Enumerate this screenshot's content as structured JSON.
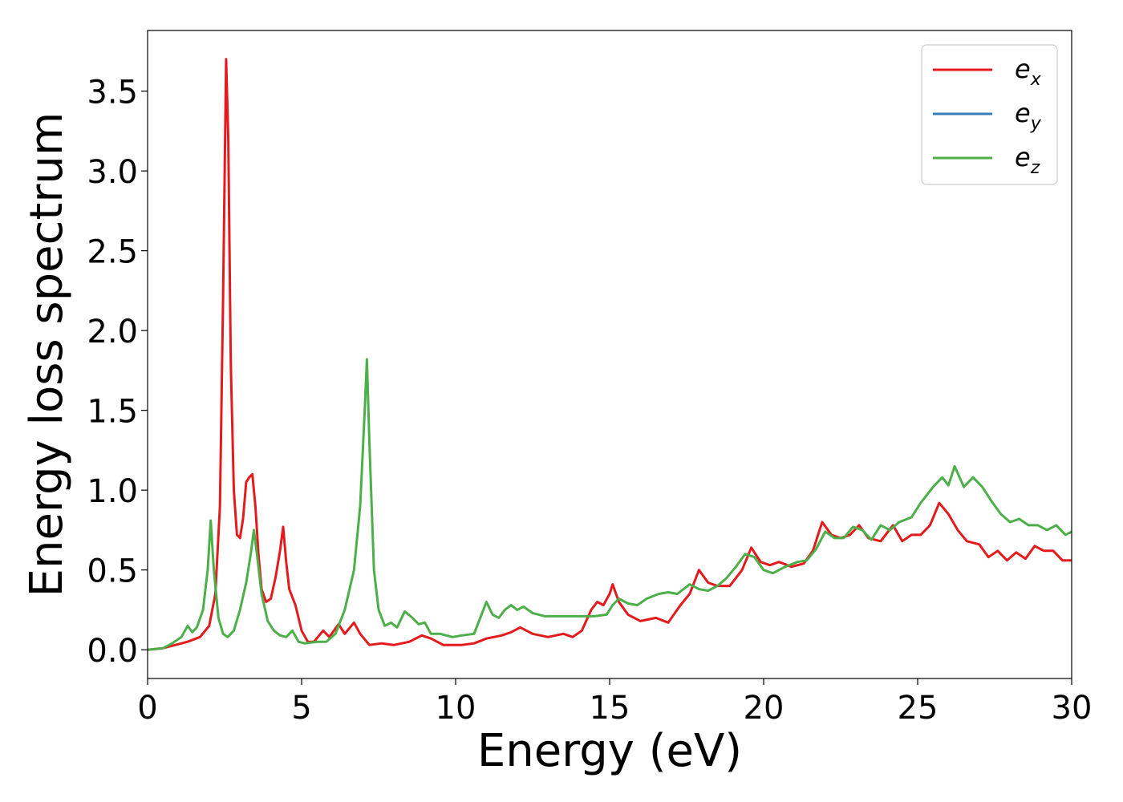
{
  "chart_data": {
    "type": "line",
    "title": "",
    "xlabel": "Energy (eV)",
    "ylabel": "Energy loss spectrum",
    "xlim": [
      0,
      30
    ],
    "ylim": [
      -0.18,
      3.88
    ],
    "x_ticks": [
      0,
      5,
      10,
      15,
      20,
      25,
      30
    ],
    "x_tick_labels": [
      "0",
      "5",
      "10",
      "15",
      "20",
      "25",
      "30"
    ],
    "y_ticks": [
      0.0,
      0.5,
      1.0,
      1.5,
      2.0,
      2.5,
      3.0,
      3.5
    ],
    "y_tick_labels": [
      "0.0",
      "0.5",
      "1.0",
      "1.5",
      "2.0",
      "2.5",
      "3.0",
      "3.5"
    ],
    "grid": false,
    "legend_position": "top-right",
    "series": [
      {
        "name": "e_x",
        "legend_base": "e",
        "legend_sub": "x",
        "color": "#e41a1c",
        "points": [
          [
            0,
            0.0
          ],
          [
            0.5,
            0.01
          ],
          [
            0.9,
            0.03
          ],
          [
            1.3,
            0.05
          ],
          [
            1.7,
            0.08
          ],
          [
            2.0,
            0.15
          ],
          [
            2.2,
            0.35
          ],
          [
            2.35,
            0.9
          ],
          [
            2.45,
            2.2
          ],
          [
            2.55,
            3.7
          ],
          [
            2.62,
            3.2
          ],
          [
            2.7,
            1.8
          ],
          [
            2.8,
            1.0
          ],
          [
            2.9,
            0.72
          ],
          [
            3.0,
            0.7
          ],
          [
            3.1,
            0.82
          ],
          [
            3.2,
            1.05
          ],
          [
            3.3,
            1.08
          ],
          [
            3.4,
            1.1
          ],
          [
            3.5,
            0.9
          ],
          [
            3.6,
            0.6
          ],
          [
            3.7,
            0.38
          ],
          [
            3.85,
            0.3
          ],
          [
            4.0,
            0.32
          ],
          [
            4.15,
            0.45
          ],
          [
            4.3,
            0.62
          ],
          [
            4.4,
            0.77
          ],
          [
            4.5,
            0.55
          ],
          [
            4.6,
            0.38
          ],
          [
            4.8,
            0.28
          ],
          [
            5.0,
            0.12
          ],
          [
            5.2,
            0.05
          ],
          [
            5.4,
            0.05
          ],
          [
            5.7,
            0.12
          ],
          [
            5.9,
            0.08
          ],
          [
            6.2,
            0.16
          ],
          [
            6.4,
            0.1
          ],
          [
            6.7,
            0.17
          ],
          [
            6.9,
            0.1
          ],
          [
            7.2,
            0.03
          ],
          [
            7.6,
            0.04
          ],
          [
            8.0,
            0.03
          ],
          [
            8.5,
            0.05
          ],
          [
            8.9,
            0.09
          ],
          [
            9.2,
            0.07
          ],
          [
            9.6,
            0.03
          ],
          [
            10.2,
            0.03
          ],
          [
            10.6,
            0.04
          ],
          [
            11.0,
            0.07
          ],
          [
            11.5,
            0.09
          ],
          [
            11.8,
            0.11
          ],
          [
            12.1,
            0.14
          ],
          [
            12.5,
            0.1
          ],
          [
            13.0,
            0.08
          ],
          [
            13.5,
            0.1
          ],
          [
            13.8,
            0.08
          ],
          [
            14.1,
            0.12
          ],
          [
            14.4,
            0.25
          ],
          [
            14.6,
            0.3
          ],
          [
            14.8,
            0.28
          ],
          [
            15.0,
            0.35
          ],
          [
            15.1,
            0.41
          ],
          [
            15.3,
            0.3
          ],
          [
            15.6,
            0.22
          ],
          [
            16.0,
            0.18
          ],
          [
            16.5,
            0.2
          ],
          [
            16.9,
            0.17
          ],
          [
            17.3,
            0.28
          ],
          [
            17.6,
            0.35
          ],
          [
            17.9,
            0.5
          ],
          [
            18.2,
            0.42
          ],
          [
            18.5,
            0.4
          ],
          [
            18.9,
            0.4
          ],
          [
            19.3,
            0.5
          ],
          [
            19.6,
            0.64
          ],
          [
            19.9,
            0.55
          ],
          [
            20.2,
            0.53
          ],
          [
            20.5,
            0.55
          ],
          [
            20.9,
            0.52
          ],
          [
            21.3,
            0.54
          ],
          [
            21.6,
            0.62
          ],
          [
            21.9,
            0.8
          ],
          [
            22.2,
            0.72
          ],
          [
            22.5,
            0.7
          ],
          [
            22.8,
            0.72
          ],
          [
            23.1,
            0.78
          ],
          [
            23.4,
            0.7
          ],
          [
            23.8,
            0.68
          ],
          [
            24.2,
            0.78
          ],
          [
            24.5,
            0.68
          ],
          [
            24.8,
            0.72
          ],
          [
            25.1,
            0.72
          ],
          [
            25.4,
            0.78
          ],
          [
            25.7,
            0.92
          ],
          [
            26.0,
            0.85
          ],
          [
            26.3,
            0.75
          ],
          [
            26.6,
            0.68
          ],
          [
            27.0,
            0.66
          ],
          [
            27.3,
            0.58
          ],
          [
            27.6,
            0.62
          ],
          [
            27.9,
            0.56
          ],
          [
            28.2,
            0.61
          ],
          [
            28.5,
            0.57
          ],
          [
            28.8,
            0.65
          ],
          [
            29.1,
            0.62
          ],
          [
            29.4,
            0.62
          ],
          [
            29.7,
            0.56
          ],
          [
            30.0,
            0.56
          ]
        ]
      },
      {
        "name": "e_y",
        "legend_base": "e",
        "legend_sub": "y",
        "color": "#377eb8",
        "hidden_under": "e_z",
        "points": []
      },
      {
        "name": "e_z",
        "legend_base": "e",
        "legend_sub": "z",
        "color": "#4daf4a",
        "points": [
          [
            0,
            0.0
          ],
          [
            0.5,
            0.01
          ],
          [
            0.8,
            0.04
          ],
          [
            1.1,
            0.08
          ],
          [
            1.3,
            0.15
          ],
          [
            1.45,
            0.11
          ],
          [
            1.6,
            0.14
          ],
          [
            1.8,
            0.25
          ],
          [
            1.95,
            0.5
          ],
          [
            2.05,
            0.81
          ],
          [
            2.15,
            0.5
          ],
          [
            2.3,
            0.2
          ],
          [
            2.45,
            0.1
          ],
          [
            2.6,
            0.08
          ],
          [
            2.8,
            0.12
          ],
          [
            3.0,
            0.25
          ],
          [
            3.2,
            0.42
          ],
          [
            3.35,
            0.6
          ],
          [
            3.45,
            0.75
          ],
          [
            3.55,
            0.6
          ],
          [
            3.7,
            0.35
          ],
          [
            3.9,
            0.18
          ],
          [
            4.1,
            0.12
          ],
          [
            4.3,
            0.09
          ],
          [
            4.5,
            0.08
          ],
          [
            4.7,
            0.12
          ],
          [
            4.9,
            0.05
          ],
          [
            5.1,
            0.04
          ],
          [
            5.5,
            0.05
          ],
          [
            5.8,
            0.05
          ],
          [
            6.1,
            0.1
          ],
          [
            6.4,
            0.25
          ],
          [
            6.7,
            0.5
          ],
          [
            6.9,
            0.9
          ],
          [
            7.05,
            1.5
          ],
          [
            7.12,
            1.82
          ],
          [
            7.2,
            1.3
          ],
          [
            7.35,
            0.5
          ],
          [
            7.5,
            0.25
          ],
          [
            7.7,
            0.15
          ],
          [
            7.9,
            0.17
          ],
          [
            8.1,
            0.14
          ],
          [
            8.35,
            0.24
          ],
          [
            8.6,
            0.2
          ],
          [
            8.8,
            0.16
          ],
          [
            9.0,
            0.17
          ],
          [
            9.2,
            0.1
          ],
          [
            9.5,
            0.1
          ],
          [
            9.9,
            0.08
          ],
          [
            10.2,
            0.09
          ],
          [
            10.6,
            0.1
          ],
          [
            10.8,
            0.2
          ],
          [
            11.0,
            0.3
          ],
          [
            11.2,
            0.22
          ],
          [
            11.4,
            0.2
          ],
          [
            11.6,
            0.25
          ],
          [
            11.8,
            0.28
          ],
          [
            12.0,
            0.25
          ],
          [
            12.2,
            0.27
          ],
          [
            12.5,
            0.23
          ],
          [
            12.9,
            0.21
          ],
          [
            13.3,
            0.21
          ],
          [
            13.7,
            0.21
          ],
          [
            14.1,
            0.21
          ],
          [
            14.5,
            0.21
          ],
          [
            14.9,
            0.22
          ],
          [
            15.1,
            0.28
          ],
          [
            15.3,
            0.32
          ],
          [
            15.6,
            0.29
          ],
          [
            15.9,
            0.28
          ],
          [
            16.2,
            0.32
          ],
          [
            16.6,
            0.35
          ],
          [
            16.9,
            0.36
          ],
          [
            17.2,
            0.35
          ],
          [
            17.6,
            0.41
          ],
          [
            17.9,
            0.38
          ],
          [
            18.2,
            0.37
          ],
          [
            18.5,
            0.4
          ],
          [
            18.8,
            0.45
          ],
          [
            19.1,
            0.52
          ],
          [
            19.4,
            0.6
          ],
          [
            19.7,
            0.58
          ],
          [
            20.0,
            0.5
          ],
          [
            20.3,
            0.48
          ],
          [
            20.7,
            0.52
          ],
          [
            21.1,
            0.55
          ],
          [
            21.4,
            0.56
          ],
          [
            21.7,
            0.63
          ],
          [
            22.0,
            0.74
          ],
          [
            22.3,
            0.7
          ],
          [
            22.6,
            0.7
          ],
          [
            22.9,
            0.77
          ],
          [
            23.2,
            0.75
          ],
          [
            23.5,
            0.69
          ],
          [
            23.8,
            0.78
          ],
          [
            24.1,
            0.75
          ],
          [
            24.4,
            0.8
          ],
          [
            24.8,
            0.83
          ],
          [
            25.1,
            0.92
          ],
          [
            25.5,
            1.02
          ],
          [
            25.8,
            1.08
          ],
          [
            26.0,
            1.03
          ],
          [
            26.2,
            1.15
          ],
          [
            26.5,
            1.02
          ],
          [
            26.8,
            1.08
          ],
          [
            27.1,
            1.02
          ],
          [
            27.4,
            0.93
          ],
          [
            27.7,
            0.85
          ],
          [
            28.0,
            0.8
          ],
          [
            28.3,
            0.82
          ],
          [
            28.6,
            0.78
          ],
          [
            28.9,
            0.78
          ],
          [
            29.2,
            0.75
          ],
          [
            29.5,
            0.78
          ],
          [
            29.8,
            0.72
          ],
          [
            30.0,
            0.74
          ]
        ]
      }
    ]
  }
}
